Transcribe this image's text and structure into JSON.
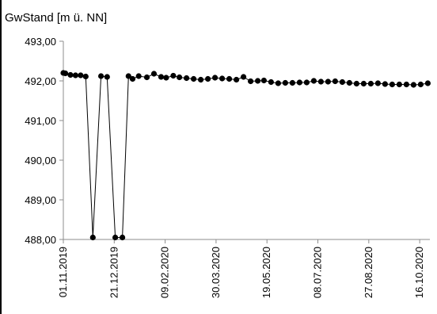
{
  "chart_data": {
    "type": "line",
    "title": "GwStand [m ü. NN]",
    "xlabel": "",
    "ylabel": "",
    "ylim": [
      488,
      493
    ],
    "yticks": [
      488,
      489,
      490,
      491,
      492,
      493
    ],
    "ytick_labels": [
      "488,00",
      "489,00",
      "490,00",
      "491,00",
      "492,00",
      "493,00"
    ],
    "xlim": [
      "2019-11-01",
      "2020-10-26"
    ],
    "xticks": [
      "2019-11-01",
      "2019-12-21",
      "2020-02-09",
      "2020-03-30",
      "2020-05-19",
      "2020-07-08",
      "2020-08-27",
      "2020-10-16"
    ],
    "xtick_labels": [
      "01.11.2019",
      "21.12.2019",
      "09.02.2020",
      "30.03.2020",
      "19.05.2020",
      "08.07.2020",
      "27.08.2020",
      "16.10.2020"
    ],
    "grid": false,
    "legend": "none",
    "series_color": "#000000",
    "series": [
      {
        "x": [
          "2019-11-01",
          "2019-11-03",
          "2019-11-08",
          "2019-11-13",
          "2019-11-18",
          "2019-11-23",
          "2019-11-30",
          "2019-12-08",
          "2019-12-14",
          "2019-12-22",
          "2019-12-29",
          "2020-01-04",
          "2020-01-08",
          "2020-01-14",
          "2020-01-22",
          "2020-01-29",
          "2020-02-05",
          "2020-02-10",
          "2020-02-17",
          "2020-02-23",
          "2020-03-01",
          "2020-03-08",
          "2020-03-15",
          "2020-03-22",
          "2020-03-29",
          "2020-04-05",
          "2020-04-12",
          "2020-04-19",
          "2020-04-26",
          "2020-05-03",
          "2020-05-10",
          "2020-05-16",
          "2020-05-23",
          "2020-05-30",
          "2020-06-06",
          "2020-06-13",
          "2020-06-20",
          "2020-06-27",
          "2020-07-04",
          "2020-07-11",
          "2020-07-18",
          "2020-07-25",
          "2020-08-01",
          "2020-08-08",
          "2020-08-15",
          "2020-08-22",
          "2020-08-29",
          "2020-09-05",
          "2020-09-12",
          "2020-09-19",
          "2020-09-26",
          "2020-10-03",
          "2020-10-10",
          "2020-10-17",
          "2020-10-24"
        ],
        "y": [
          492.2,
          492.19,
          492.15,
          492.14,
          492.14,
          492.11,
          488.05,
          492.12,
          492.1,
          488.05,
          488.05,
          492.12,
          492.05,
          492.12,
          492.09,
          492.18,
          492.1,
          492.08,
          492.13,
          492.09,
          492.07,
          492.05,
          492.03,
          492.05,
          492.08,
          492.06,
          492.05,
          492.03,
          492.1,
          491.99,
          492.0,
          492.01,
          491.97,
          491.94,
          491.95,
          491.95,
          491.96,
          491.96,
          492.0,
          491.98,
          491.98,
          491.99,
          491.97,
          491.95,
          491.93,
          491.93,
          491.93,
          491.94,
          491.92,
          491.91,
          491.91,
          491.91,
          491.9,
          491.91,
          491.94
        ]
      }
    ]
  }
}
